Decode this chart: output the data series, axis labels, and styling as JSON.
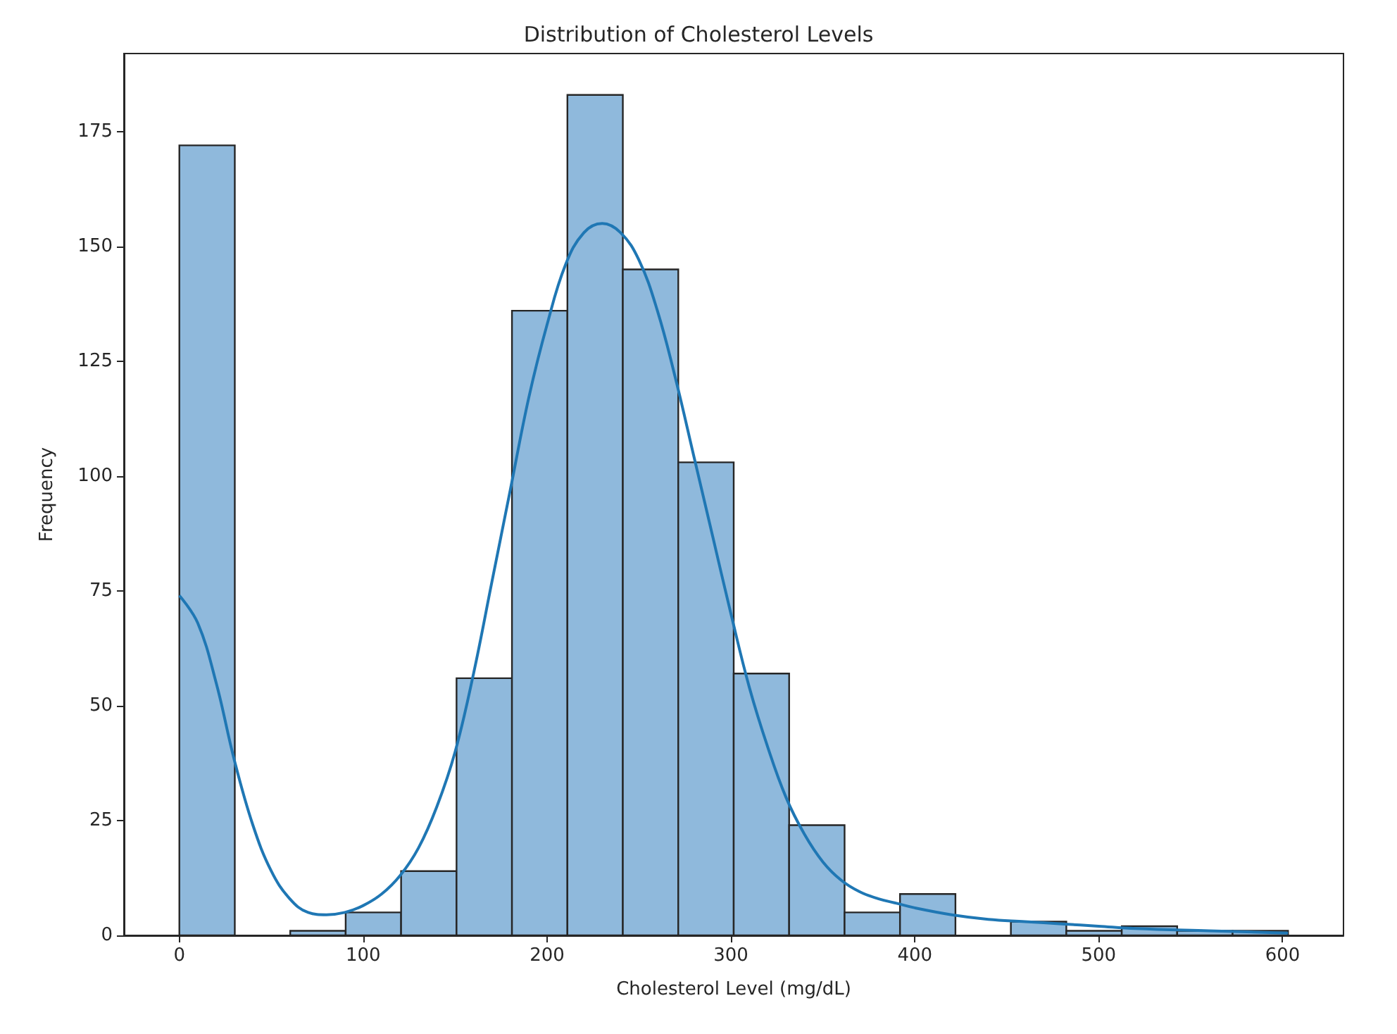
{
  "chart_data": {
    "type": "histogram",
    "title": "Distribution of Cholesterol Levels",
    "xlabel": "Cholesterol Level (mg/dL)",
    "ylabel": "Frequency",
    "bins": [
      0,
      30.15,
      60.3,
      90.45,
      120.6,
      150.75,
      180.9,
      211.05,
      241.2,
      271.35,
      301.5,
      331.65,
      361.8,
      391.95,
      422.1,
      452.25,
      482.4,
      512.55,
      542.7,
      572.85,
      603
    ],
    "values": [
      172,
      0,
      1,
      5,
      14,
      56,
      136,
      183,
      145,
      103,
      57,
      24,
      5,
      9,
      0,
      3,
      1,
      2,
      1,
      1
    ],
    "color": "#8fb9dc",
    "series": [
      {
        "type": "line",
        "color": "#1f77b4",
        "x": [
          0,
          10,
          20,
          30,
          40,
          50,
          60,
          70,
          80,
          90,
          100,
          110,
          120,
          130,
          140,
          150,
          160,
          170,
          180,
          190,
          200,
          210,
          220,
          230,
          240,
          250,
          260,
          270,
          280,
          290,
          300,
          310,
          320,
          330,
          340,
          350,
          360,
          370,
          380,
          390,
          400,
          420,
          440,
          460,
          480,
          500,
          520,
          560,
          603
        ],
        "values": [
          74,
          68,
          55,
          38,
          24,
          14,
          8,
          5,
          4.5,
          5,
          6.5,
          9,
          13,
          19,
          28,
          40,
          57,
          77,
          97,
          117,
          133,
          146,
          153,
          155,
          153,
          147,
          136,
          121,
          104,
          87,
          70,
          54,
          41,
          30,
          22,
          16,
          12,
          9.5,
          8,
          7,
          6,
          4.5,
          3.5,
          3,
          2.5,
          2,
          1.5,
          1,
          0.5
        ]
      }
    ],
    "xlim": [
      -30.15,
      633.15
    ],
    "xticks": [
      0,
      100,
      200,
      300,
      400,
      500,
      600
    ],
    "ylim": [
      0,
      192
    ],
    "yticks": [
      0,
      25,
      50,
      75,
      100,
      125,
      150,
      175
    ],
    "grid": false
  }
}
